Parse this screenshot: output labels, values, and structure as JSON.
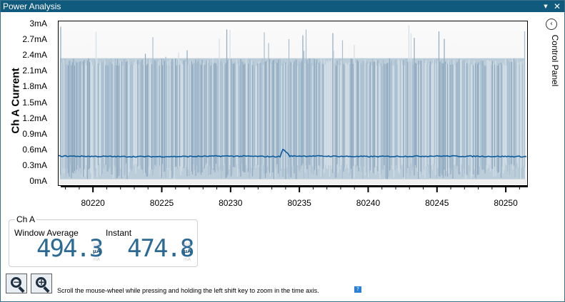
{
  "window": {
    "title": "Power Analysis",
    "pin_glyph": "▼",
    "close_glyph": "✕"
  },
  "plot": {
    "ylabel": "Ch A Current",
    "yticks": [
      "3mA",
      "2.7mA",
      "2.4mA",
      "2.1mA",
      "1.8mA",
      "1.5mA",
      "1.2mA",
      "0.9mA",
      "0.6mA",
      "0.3mA",
      "0mA"
    ],
    "xticks": [
      "80220",
      "80225",
      "80230",
      "80235",
      "80240",
      "80245",
      "80250"
    ]
  },
  "chart_data": {
    "type": "line",
    "title": "",
    "xlabel": "",
    "ylabel": "Ch A Current",
    "xlim": [
      80217.5,
      80251.5
    ],
    "ylim": [
      -0.05,
      3.05
    ],
    "yunit": "mA",
    "series": [
      {
        "style": "band",
        "color": "#a9bfd1",
        "y_min": 0.05,
        "y_max": 2.35,
        "y_max_spikes": 3.0
      },
      {
        "style": "line",
        "color": "#0a5a9c",
        "x": [
          80217.5,
          80222,
          80226,
          80230,
          80233,
          80233.6,
          80233.8,
          80234.0,
          80234.3,
          80236,
          80240,
          80245,
          80251.5
        ],
        "y": [
          0.49,
          0.48,
          0.48,
          0.49,
          0.48,
          0.48,
          0.62,
          0.58,
          0.49,
          0.49,
          0.48,
          0.49,
          0.48
        ]
      }
    ]
  },
  "side": {
    "toggle_glyph": "‹",
    "label": "Control Panel"
  },
  "meter": {
    "group_title": "Ch A",
    "avg_label": "Window Average",
    "avg_value": "494.3",
    "inst_label": "Instant",
    "inst_value": "474.8",
    "unit": "µA",
    "unit_ghost": "mA"
  },
  "footer": {
    "zoom_out_glyph": "−",
    "zoom_in_glyph": "+",
    "hint": "Scroll the mouse-wheel while pressing and holding the left shift key to zoom in the time axis.",
    "help_glyph": "?"
  }
}
